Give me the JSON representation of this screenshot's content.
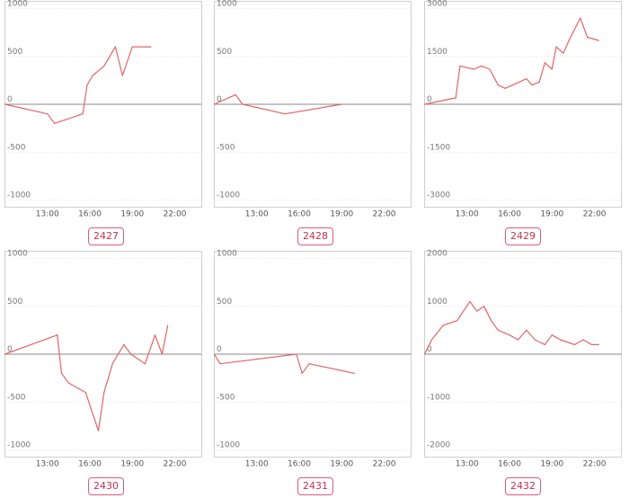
{
  "chart_data": [
    {
      "type": "line",
      "label": "2427",
      "ylim": [
        -1000,
        1000
      ],
      "yticks": [
        1000,
        500,
        0,
        -500,
        -1000
      ],
      "xticks": [
        "13:00",
        "16:00",
        "19:00",
        "22:00"
      ],
      "xlim": [
        10.0,
        23.9
      ],
      "x": [
        10.0,
        13.0,
        13.5,
        15.5,
        15.8,
        16.2,
        17.0,
        17.8,
        18.3,
        19.0,
        20.3
      ],
      "y": [
        0,
        -100,
        -200,
        -100,
        200,
        300,
        400,
        600,
        300,
        600,
        600
      ],
      "color": "#e06666"
    },
    {
      "type": "line",
      "label": "2428",
      "ylim": [
        -1000,
        1000
      ],
      "yticks": [
        1000,
        500,
        0,
        -500,
        -1000
      ],
      "xticks": [
        "13:00",
        "16:00",
        "19:00",
        "22:00"
      ],
      "xlim": [
        10.0,
        23.9
      ],
      "x": [
        10.0,
        11.5,
        12.0,
        15.0,
        19.0
      ],
      "y": [
        0,
        100,
        0,
        -100,
        0
      ],
      "color": "#e06666"
    },
    {
      "type": "line",
      "label": "2429",
      "ylim": [
        -3000,
        3000
      ],
      "yticks": [
        3000,
        1500,
        0,
        -1500,
        -3000
      ],
      "xticks": [
        "13:00",
        "16:00",
        "19:00",
        "22:00"
      ],
      "xlim": [
        10.0,
        23.9
      ],
      "x": [
        10.0,
        12.2,
        12.5,
        13.5,
        14.0,
        14.6,
        15.2,
        15.7,
        17.2,
        17.6,
        18.1,
        18.5,
        19.0,
        19.3,
        19.8,
        20.2,
        21.0,
        21.5,
        22.3
      ],
      "y": [
        0,
        200,
        1200,
        1100,
        1200,
        1100,
        600,
        500,
        800,
        600,
        700,
        1300,
        1100,
        1800,
        1600,
        2000,
        2700,
        2100,
        2000
      ],
      "color": "#e06666"
    },
    {
      "type": "line",
      "label": "2430",
      "ylim": [
        -1000,
        1000
      ],
      "yticks": [
        1000,
        500,
        0,
        -500,
        -1000
      ],
      "xticks": [
        "13:00",
        "16:00",
        "19:00",
        "22:00"
      ],
      "xlim": [
        10.0,
        23.9
      ],
      "x": [
        10.0,
        13.7,
        14.0,
        14.5,
        15.7,
        16.6,
        17.0,
        17.6,
        18.4,
        18.9,
        19.9,
        20.6,
        21.1,
        21.5
      ],
      "y": [
        0,
        200,
        -200,
        -300,
        -400,
        -800,
        -400,
        -100,
        100,
        0,
        -100,
        200,
        0,
        300
      ],
      "color": "#e06666"
    },
    {
      "type": "line",
      "label": "2431",
      "ylim": [
        -1000,
        1000
      ],
      "yticks": [
        1000,
        500,
        0,
        -500,
        -1000
      ],
      "xticks": [
        "13:00",
        "16:00",
        "19:00",
        "22:00"
      ],
      "xlim": [
        10.0,
        23.9
      ],
      "x": [
        10.0,
        10.4,
        15.8,
        16.2,
        16.7,
        19.9
      ],
      "y": [
        0,
        -100,
        0,
        -200,
        -100,
        -200
      ],
      "color": "#e06666"
    },
    {
      "type": "line",
      "label": "2432",
      "ylim": [
        -2000,
        2000
      ],
      "yticks": [
        2000,
        1000,
        0,
        -1000,
        -2000
      ],
      "xticks": [
        "13:00",
        "16:00",
        "19:00",
        "22:00"
      ],
      "xlim": [
        10.0,
        23.9
      ],
      "x": [
        10.0,
        10.5,
        11.3,
        12.3,
        13.2,
        13.7,
        14.2,
        14.7,
        15.2,
        16.0,
        16.6,
        17.2,
        17.8,
        18.5,
        19.0,
        19.6,
        20.6,
        21.2,
        21.8,
        22.3
      ],
      "y": [
        0,
        300,
        600,
        700,
        1100,
        900,
        1000,
        700,
        500,
        400,
        300,
        500,
        300,
        200,
        400,
        300,
        200,
        300,
        200,
        200
      ],
      "color": "#e06666"
    }
  ]
}
